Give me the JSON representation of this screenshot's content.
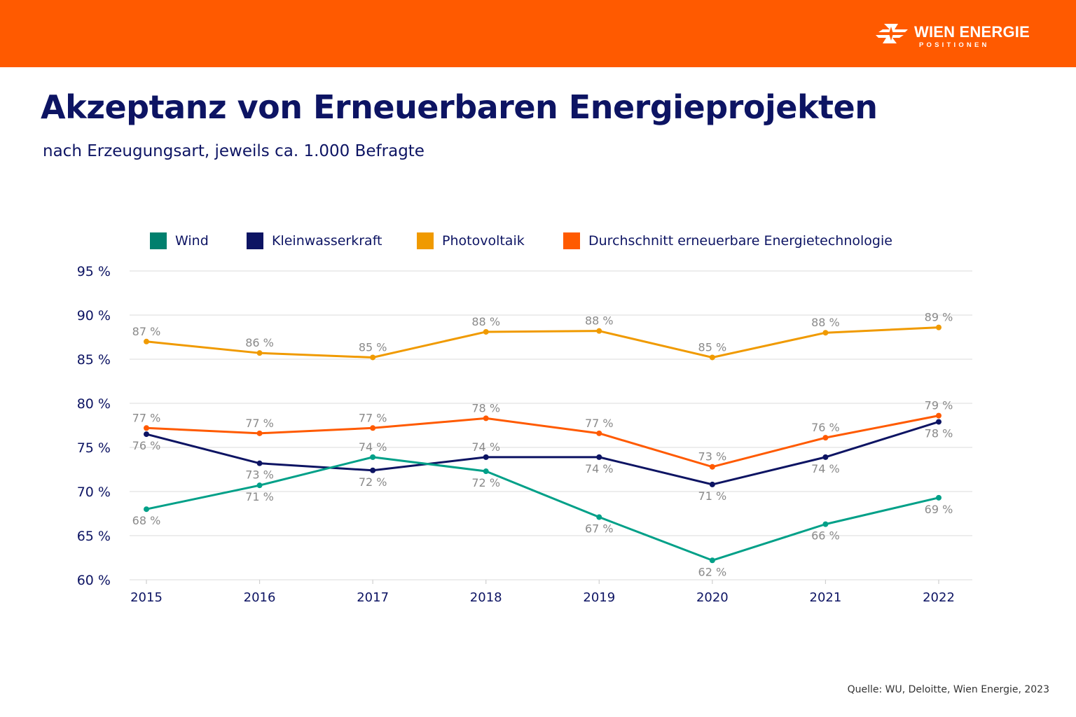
{
  "header": {
    "brand_name": "WIEN ENERGIE",
    "brand_sub": "POSITIONEN",
    "brand_color": "#ff5a00"
  },
  "title": "Akzeptanz von Erneuerbaren Energieprojekten",
  "subtitle": "nach Erzeugungsart, jeweils ca. 1.000 Befragte",
  "source": "Quelle: WU, Deloitte, Wien Energie, 2023",
  "chart_data": {
    "type": "line",
    "title": "Akzeptanz von Erneuerbaren Energieprojekten",
    "subtitle": "nach Erzeugungsart, jeweils ca. 1.000 Befragte",
    "x": [
      "2015",
      "2016",
      "2017",
      "2018",
      "2019",
      "2020",
      "2021",
      "2022"
    ],
    "ylim": [
      60,
      95
    ],
    "yticks": [
      95,
      90,
      85,
      80,
      75,
      70,
      65,
      60
    ],
    "ytick_labels": [
      "95 %",
      "90 %",
      "85 %",
      "80 %",
      "75 %",
      "70 %",
      "65 %",
      "60 %"
    ],
    "grid": true,
    "legend": "top",
    "series": [
      {
        "name": "Wind",
        "color": "#00a088",
        "values": [
          68.0,
          70.7,
          73.9,
          72.3,
          67.1,
          62.2,
          66.3,
          69.3
        ],
        "labels": [
          "68 %",
          "71 %",
          "74 %",
          "72 %",
          "67 %",
          "62 %",
          "66 %",
          "69 %"
        ]
      },
      {
        "name": "Kleinwasserkraft",
        "color": "#0d1463",
        "values": [
          76.5,
          73.2,
          72.4,
          73.9,
          73.9,
          70.8,
          73.9,
          77.9
        ],
        "labels": [
          "76 %",
          "73 %",
          "72 %",
          "74 %",
          "74 %",
          "71 %",
          "74 %",
          "78 %"
        ]
      },
      {
        "name": "Photovoltaik",
        "color": "#f09a00",
        "values": [
          87.0,
          85.7,
          85.2,
          88.1,
          88.2,
          85.2,
          88.0,
          88.6
        ],
        "labels": [
          "87 %",
          "86 %",
          "85 %",
          "88 %",
          "88 %",
          "85 %",
          "88 %",
          "89 %"
        ]
      },
      {
        "name": "Durchschnitt erneuerbare Energietechnologie",
        "color": "#ff5a00",
        "values": [
          77.2,
          76.6,
          77.2,
          78.3,
          76.6,
          72.8,
          76.1,
          78.6
        ],
        "labels": [
          "77 %",
          "77 %",
          "77 %",
          "78 %",
          "77 %",
          "73 %",
          "76 %",
          "79 %"
        ]
      }
    ]
  }
}
